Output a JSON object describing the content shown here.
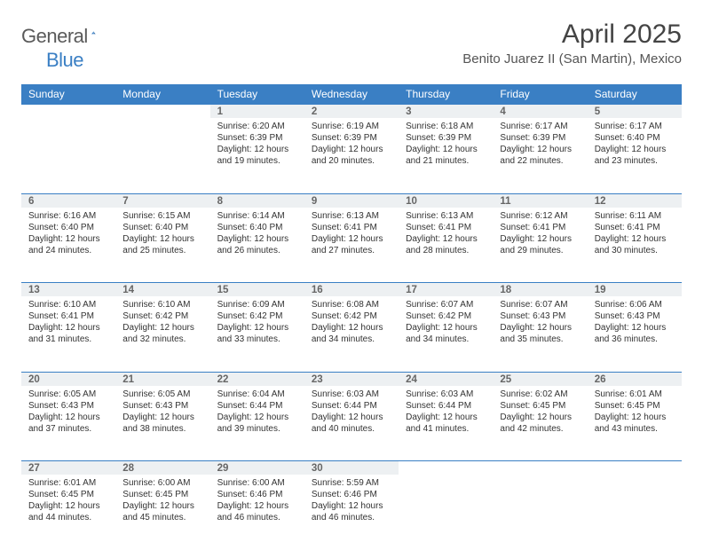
{
  "brand": {
    "part1": "General",
    "part2": "Blue"
  },
  "title": "April 2025",
  "location": "Benito Juarez II (San Martin), Mexico",
  "header_bg": "#3a7fc4",
  "header_fg": "#ffffff",
  "daynum_bg": "#edf0f2",
  "daynum_border": "#3a7fc4",
  "text_color": "#333333",
  "weekdays": [
    "Sunday",
    "Monday",
    "Tuesday",
    "Wednesday",
    "Thursday",
    "Friday",
    "Saturday"
  ],
  "weeks": [
    [
      null,
      null,
      {
        "n": "1",
        "sunrise": "Sunrise: 6:20 AM",
        "sunset": "Sunset: 6:39 PM",
        "day1": "Daylight: 12 hours",
        "day2": "and 19 minutes."
      },
      {
        "n": "2",
        "sunrise": "Sunrise: 6:19 AM",
        "sunset": "Sunset: 6:39 PM",
        "day1": "Daylight: 12 hours",
        "day2": "and 20 minutes."
      },
      {
        "n": "3",
        "sunrise": "Sunrise: 6:18 AM",
        "sunset": "Sunset: 6:39 PM",
        "day1": "Daylight: 12 hours",
        "day2": "and 21 minutes."
      },
      {
        "n": "4",
        "sunrise": "Sunrise: 6:17 AM",
        "sunset": "Sunset: 6:39 PM",
        "day1": "Daylight: 12 hours",
        "day2": "and 22 minutes."
      },
      {
        "n": "5",
        "sunrise": "Sunrise: 6:17 AM",
        "sunset": "Sunset: 6:40 PM",
        "day1": "Daylight: 12 hours",
        "day2": "and 23 minutes."
      }
    ],
    [
      {
        "n": "6",
        "sunrise": "Sunrise: 6:16 AM",
        "sunset": "Sunset: 6:40 PM",
        "day1": "Daylight: 12 hours",
        "day2": "and 24 minutes."
      },
      {
        "n": "7",
        "sunrise": "Sunrise: 6:15 AM",
        "sunset": "Sunset: 6:40 PM",
        "day1": "Daylight: 12 hours",
        "day2": "and 25 minutes."
      },
      {
        "n": "8",
        "sunrise": "Sunrise: 6:14 AM",
        "sunset": "Sunset: 6:40 PM",
        "day1": "Daylight: 12 hours",
        "day2": "and 26 minutes."
      },
      {
        "n": "9",
        "sunrise": "Sunrise: 6:13 AM",
        "sunset": "Sunset: 6:41 PM",
        "day1": "Daylight: 12 hours",
        "day2": "and 27 minutes."
      },
      {
        "n": "10",
        "sunrise": "Sunrise: 6:13 AM",
        "sunset": "Sunset: 6:41 PM",
        "day1": "Daylight: 12 hours",
        "day2": "and 28 minutes."
      },
      {
        "n": "11",
        "sunrise": "Sunrise: 6:12 AM",
        "sunset": "Sunset: 6:41 PM",
        "day1": "Daylight: 12 hours",
        "day2": "and 29 minutes."
      },
      {
        "n": "12",
        "sunrise": "Sunrise: 6:11 AM",
        "sunset": "Sunset: 6:41 PM",
        "day1": "Daylight: 12 hours",
        "day2": "and 30 minutes."
      }
    ],
    [
      {
        "n": "13",
        "sunrise": "Sunrise: 6:10 AM",
        "sunset": "Sunset: 6:41 PM",
        "day1": "Daylight: 12 hours",
        "day2": "and 31 minutes."
      },
      {
        "n": "14",
        "sunrise": "Sunrise: 6:10 AM",
        "sunset": "Sunset: 6:42 PM",
        "day1": "Daylight: 12 hours",
        "day2": "and 32 minutes."
      },
      {
        "n": "15",
        "sunrise": "Sunrise: 6:09 AM",
        "sunset": "Sunset: 6:42 PM",
        "day1": "Daylight: 12 hours",
        "day2": "and 33 minutes."
      },
      {
        "n": "16",
        "sunrise": "Sunrise: 6:08 AM",
        "sunset": "Sunset: 6:42 PM",
        "day1": "Daylight: 12 hours",
        "day2": "and 34 minutes."
      },
      {
        "n": "17",
        "sunrise": "Sunrise: 6:07 AM",
        "sunset": "Sunset: 6:42 PM",
        "day1": "Daylight: 12 hours",
        "day2": "and 34 minutes."
      },
      {
        "n": "18",
        "sunrise": "Sunrise: 6:07 AM",
        "sunset": "Sunset: 6:43 PM",
        "day1": "Daylight: 12 hours",
        "day2": "and 35 minutes."
      },
      {
        "n": "19",
        "sunrise": "Sunrise: 6:06 AM",
        "sunset": "Sunset: 6:43 PM",
        "day1": "Daylight: 12 hours",
        "day2": "and 36 minutes."
      }
    ],
    [
      {
        "n": "20",
        "sunrise": "Sunrise: 6:05 AM",
        "sunset": "Sunset: 6:43 PM",
        "day1": "Daylight: 12 hours",
        "day2": "and 37 minutes."
      },
      {
        "n": "21",
        "sunrise": "Sunrise: 6:05 AM",
        "sunset": "Sunset: 6:43 PM",
        "day1": "Daylight: 12 hours",
        "day2": "and 38 minutes."
      },
      {
        "n": "22",
        "sunrise": "Sunrise: 6:04 AM",
        "sunset": "Sunset: 6:44 PM",
        "day1": "Daylight: 12 hours",
        "day2": "and 39 minutes."
      },
      {
        "n": "23",
        "sunrise": "Sunrise: 6:03 AM",
        "sunset": "Sunset: 6:44 PM",
        "day1": "Daylight: 12 hours",
        "day2": "and 40 minutes."
      },
      {
        "n": "24",
        "sunrise": "Sunrise: 6:03 AM",
        "sunset": "Sunset: 6:44 PM",
        "day1": "Daylight: 12 hours",
        "day2": "and 41 minutes."
      },
      {
        "n": "25",
        "sunrise": "Sunrise: 6:02 AM",
        "sunset": "Sunset: 6:45 PM",
        "day1": "Daylight: 12 hours",
        "day2": "and 42 minutes."
      },
      {
        "n": "26",
        "sunrise": "Sunrise: 6:01 AM",
        "sunset": "Sunset: 6:45 PM",
        "day1": "Daylight: 12 hours",
        "day2": "and 43 minutes."
      }
    ],
    [
      {
        "n": "27",
        "sunrise": "Sunrise: 6:01 AM",
        "sunset": "Sunset: 6:45 PM",
        "day1": "Daylight: 12 hours",
        "day2": "and 44 minutes."
      },
      {
        "n": "28",
        "sunrise": "Sunrise: 6:00 AM",
        "sunset": "Sunset: 6:45 PM",
        "day1": "Daylight: 12 hours",
        "day2": "and 45 minutes."
      },
      {
        "n": "29",
        "sunrise": "Sunrise: 6:00 AM",
        "sunset": "Sunset: 6:46 PM",
        "day1": "Daylight: 12 hours",
        "day2": "and 46 minutes."
      },
      {
        "n": "30",
        "sunrise": "Sunrise: 5:59 AM",
        "sunset": "Sunset: 6:46 PM",
        "day1": "Daylight: 12 hours",
        "day2": "and 46 minutes."
      },
      null,
      null,
      null
    ]
  ]
}
